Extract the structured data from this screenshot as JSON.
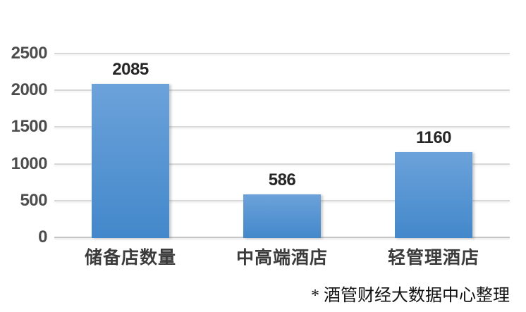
{
  "chart_data": {
    "type": "bar",
    "title": "",
    "categories": [
      "储备店数量",
      "中高端酒店",
      "轻管理酒店"
    ],
    "values": [
      2085,
      586,
      1160
    ],
    "value_labels": [
      "2085",
      "586",
      "1160"
    ],
    "ylim": [
      0,
      2500
    ],
    "ytick_interval": 500,
    "ytick_labels": [
      "2500",
      "2000",
      "1500",
      "1000",
      "500",
      "0"
    ],
    "xlabel": "",
    "ylabel": "",
    "grid": "horizontal",
    "legend": "none",
    "source_note": "* 酒管财经大数据中心整理",
    "colors": {
      "bar_gradient_top": "#6CA2DA",
      "bar_gradient_bottom": "#4388CB",
      "gridline": "#D8D8D8",
      "axis_line": "#C6C6C6",
      "ytick_label": "#4D4D4D",
      "value_label": "#262626",
      "category_label": "#3B3B3B",
      "background": "#FFFFFF"
    }
  }
}
